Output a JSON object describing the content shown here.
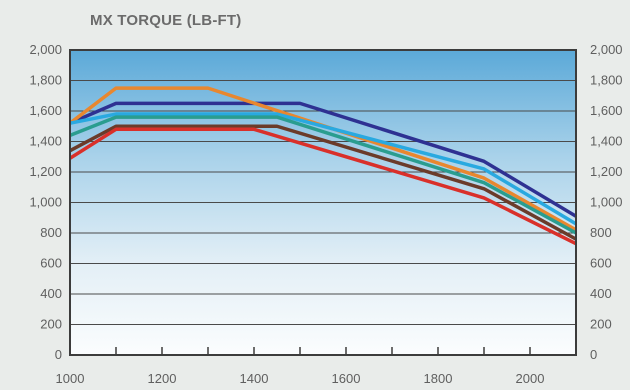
{
  "chart_data": {
    "type": "line",
    "title": "MX TORQUE (LB-FT)",
    "xlabel": "",
    "ylabel": "",
    "xlim": [
      1000,
      2100
    ],
    "ylim": [
      0,
      2000
    ],
    "y_ticks": [
      "0",
      "200",
      "400",
      "600",
      "800",
      "1,000",
      "1,200",
      "1,400",
      "1,600",
      "1,800",
      "2,000"
    ],
    "x_ticks": [
      "1000",
      "1200",
      "1400",
      "1600",
      "1800",
      "2000"
    ],
    "grid": true,
    "legend": "none",
    "series": [
      {
        "color": "#2e3192",
        "x": [
          1000,
          1100,
          1500,
          1900,
          2100
        ],
        "y": [
          1520,
          1650,
          1650,
          1270,
          910
        ]
      },
      {
        "color": "#e8872f",
        "x": [
          1000,
          1100,
          1300,
          1900,
          2100
        ],
        "y": [
          1520,
          1750,
          1750,
          1160,
          820
        ]
      },
      {
        "color": "#29a9e0",
        "x": [
          1000,
          1100,
          1450,
          1900,
          2100
        ],
        "y": [
          1520,
          1580,
          1580,
          1220,
          860
        ]
      },
      {
        "color": "#2a9d8f",
        "x": [
          1000,
          1100,
          1450,
          1900,
          2100
        ],
        "y": [
          1440,
          1560,
          1560,
          1130,
          800
        ]
      },
      {
        "color": "#6b3b2a",
        "x": [
          1000,
          1100,
          1450,
          1900,
          2100
        ],
        "y": [
          1340,
          1500,
          1500,
          1090,
          760
        ]
      },
      {
        "color": "#d9302a",
        "x": [
          1000,
          1100,
          1400,
          1900,
          2100
        ],
        "y": [
          1290,
          1480,
          1480,
          1030,
          730
        ]
      }
    ]
  }
}
